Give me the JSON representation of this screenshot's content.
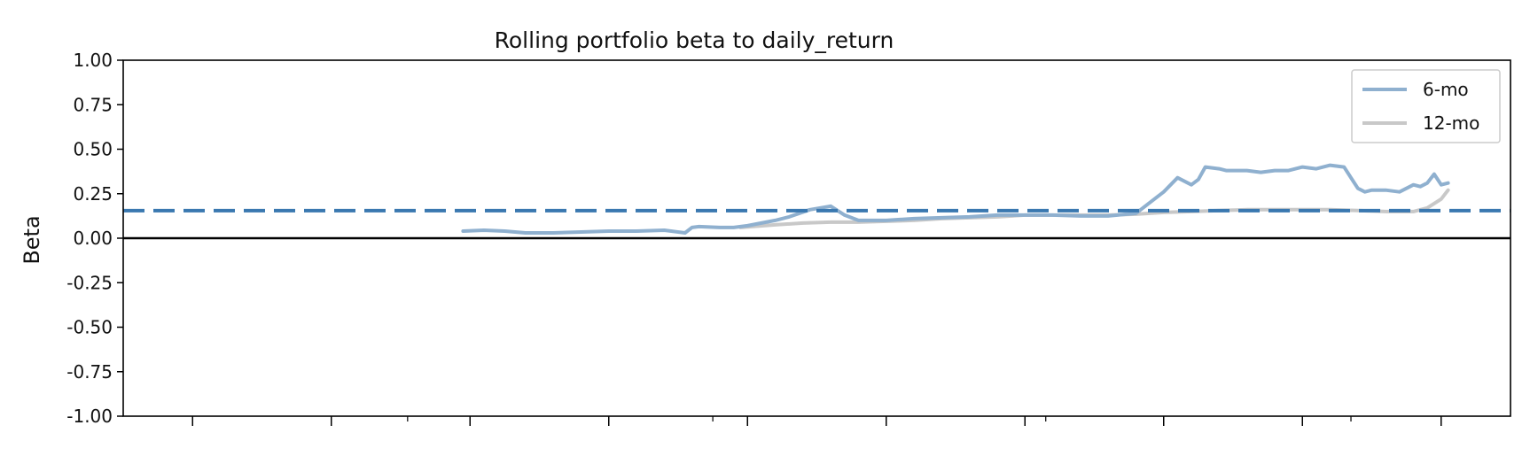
{
  "chart_data": {
    "type": "line",
    "title": "Rolling portfolio beta to daily_return",
    "xlabel": "",
    "ylabel": "Beta",
    "ylim": [
      -1.0,
      1.0
    ],
    "yticks": [
      "1.00",
      "0.75",
      "0.50",
      "0.25",
      "0.00",
      "-0.25",
      "-0.50",
      "-0.75",
      "-1.00"
    ],
    "ytick_values": [
      1.0,
      0.75,
      0.5,
      0.25,
      0.0,
      -0.25,
      -0.5,
      -0.75,
      -1.0
    ],
    "xlim": [
      0,
      100
    ],
    "major_xticks": [
      5,
      15,
      25,
      35,
      45,
      55,
      65,
      75,
      85,
      95
    ],
    "minor_xticks": [
      20.5,
      42.5,
      66.5,
      88.5
    ],
    "grid": false,
    "legend_position": "top-right",
    "reference_lines": [
      {
        "value": 0.0,
        "style": "solid",
        "color": "#000000"
      },
      {
        "value": 0.155,
        "style": "dashed",
        "color": "#3a78b0"
      }
    ],
    "series": [
      {
        "name": "6-mo",
        "color": "#8fb0cf",
        "x": [
          24.5,
          26,
          27.5,
          29,
          31,
          33,
          35,
          37,
          39,
          40.5,
          41,
          41.5,
          43,
          44,
          45,
          46,
          47,
          48,
          49.5,
          51,
          52,
          53,
          55,
          57,
          59,
          61,
          63,
          65,
          67,
          69,
          71,
          73,
          74,
          75,
          76,
          77,
          77.5,
          78,
          79,
          79.5,
          80,
          81,
          82,
          83,
          84,
          85,
          86,
          87,
          88,
          89,
          89.5,
          90,
          91,
          92,
          93,
          93.5,
          94,
          94.5,
          95,
          95.5
        ],
        "y": [
          0.04,
          0.045,
          0.04,
          0.03,
          0.03,
          0.035,
          0.04,
          0.04,
          0.045,
          0.03,
          0.06,
          0.065,
          0.06,
          0.06,
          0.07,
          0.085,
          0.1,
          0.12,
          0.16,
          0.18,
          0.13,
          0.1,
          0.1,
          0.11,
          0.115,
          0.12,
          0.13,
          0.13,
          0.13,
          0.125,
          0.125,
          0.14,
          0.2,
          0.26,
          0.34,
          0.3,
          0.33,
          0.4,
          0.39,
          0.38,
          0.38,
          0.38,
          0.37,
          0.38,
          0.38,
          0.4,
          0.39,
          0.41,
          0.4,
          0.28,
          0.26,
          0.27,
          0.27,
          0.26,
          0.3,
          0.29,
          0.31,
          0.36,
          0.3,
          0.31
        ]
      },
      {
        "name": "12-mo",
        "color": "#c8c8c8",
        "x": [
          44.5,
          47,
          49,
          51,
          53,
          55,
          57,
          59,
          61,
          63,
          65,
          67,
          69,
          71,
          73,
          75,
          77,
          79,
          81,
          83,
          85,
          87,
          89,
          91,
          93,
          94,
          95,
          95.5
        ],
        "y": [
          0.06,
          0.075,
          0.085,
          0.09,
          0.09,
          0.095,
          0.1,
          0.11,
          0.115,
          0.12,
          0.13,
          0.13,
          0.13,
          0.13,
          0.135,
          0.145,
          0.15,
          0.155,
          0.16,
          0.16,
          0.16,
          0.16,
          0.155,
          0.15,
          0.15,
          0.17,
          0.22,
          0.27
        ]
      }
    ]
  }
}
